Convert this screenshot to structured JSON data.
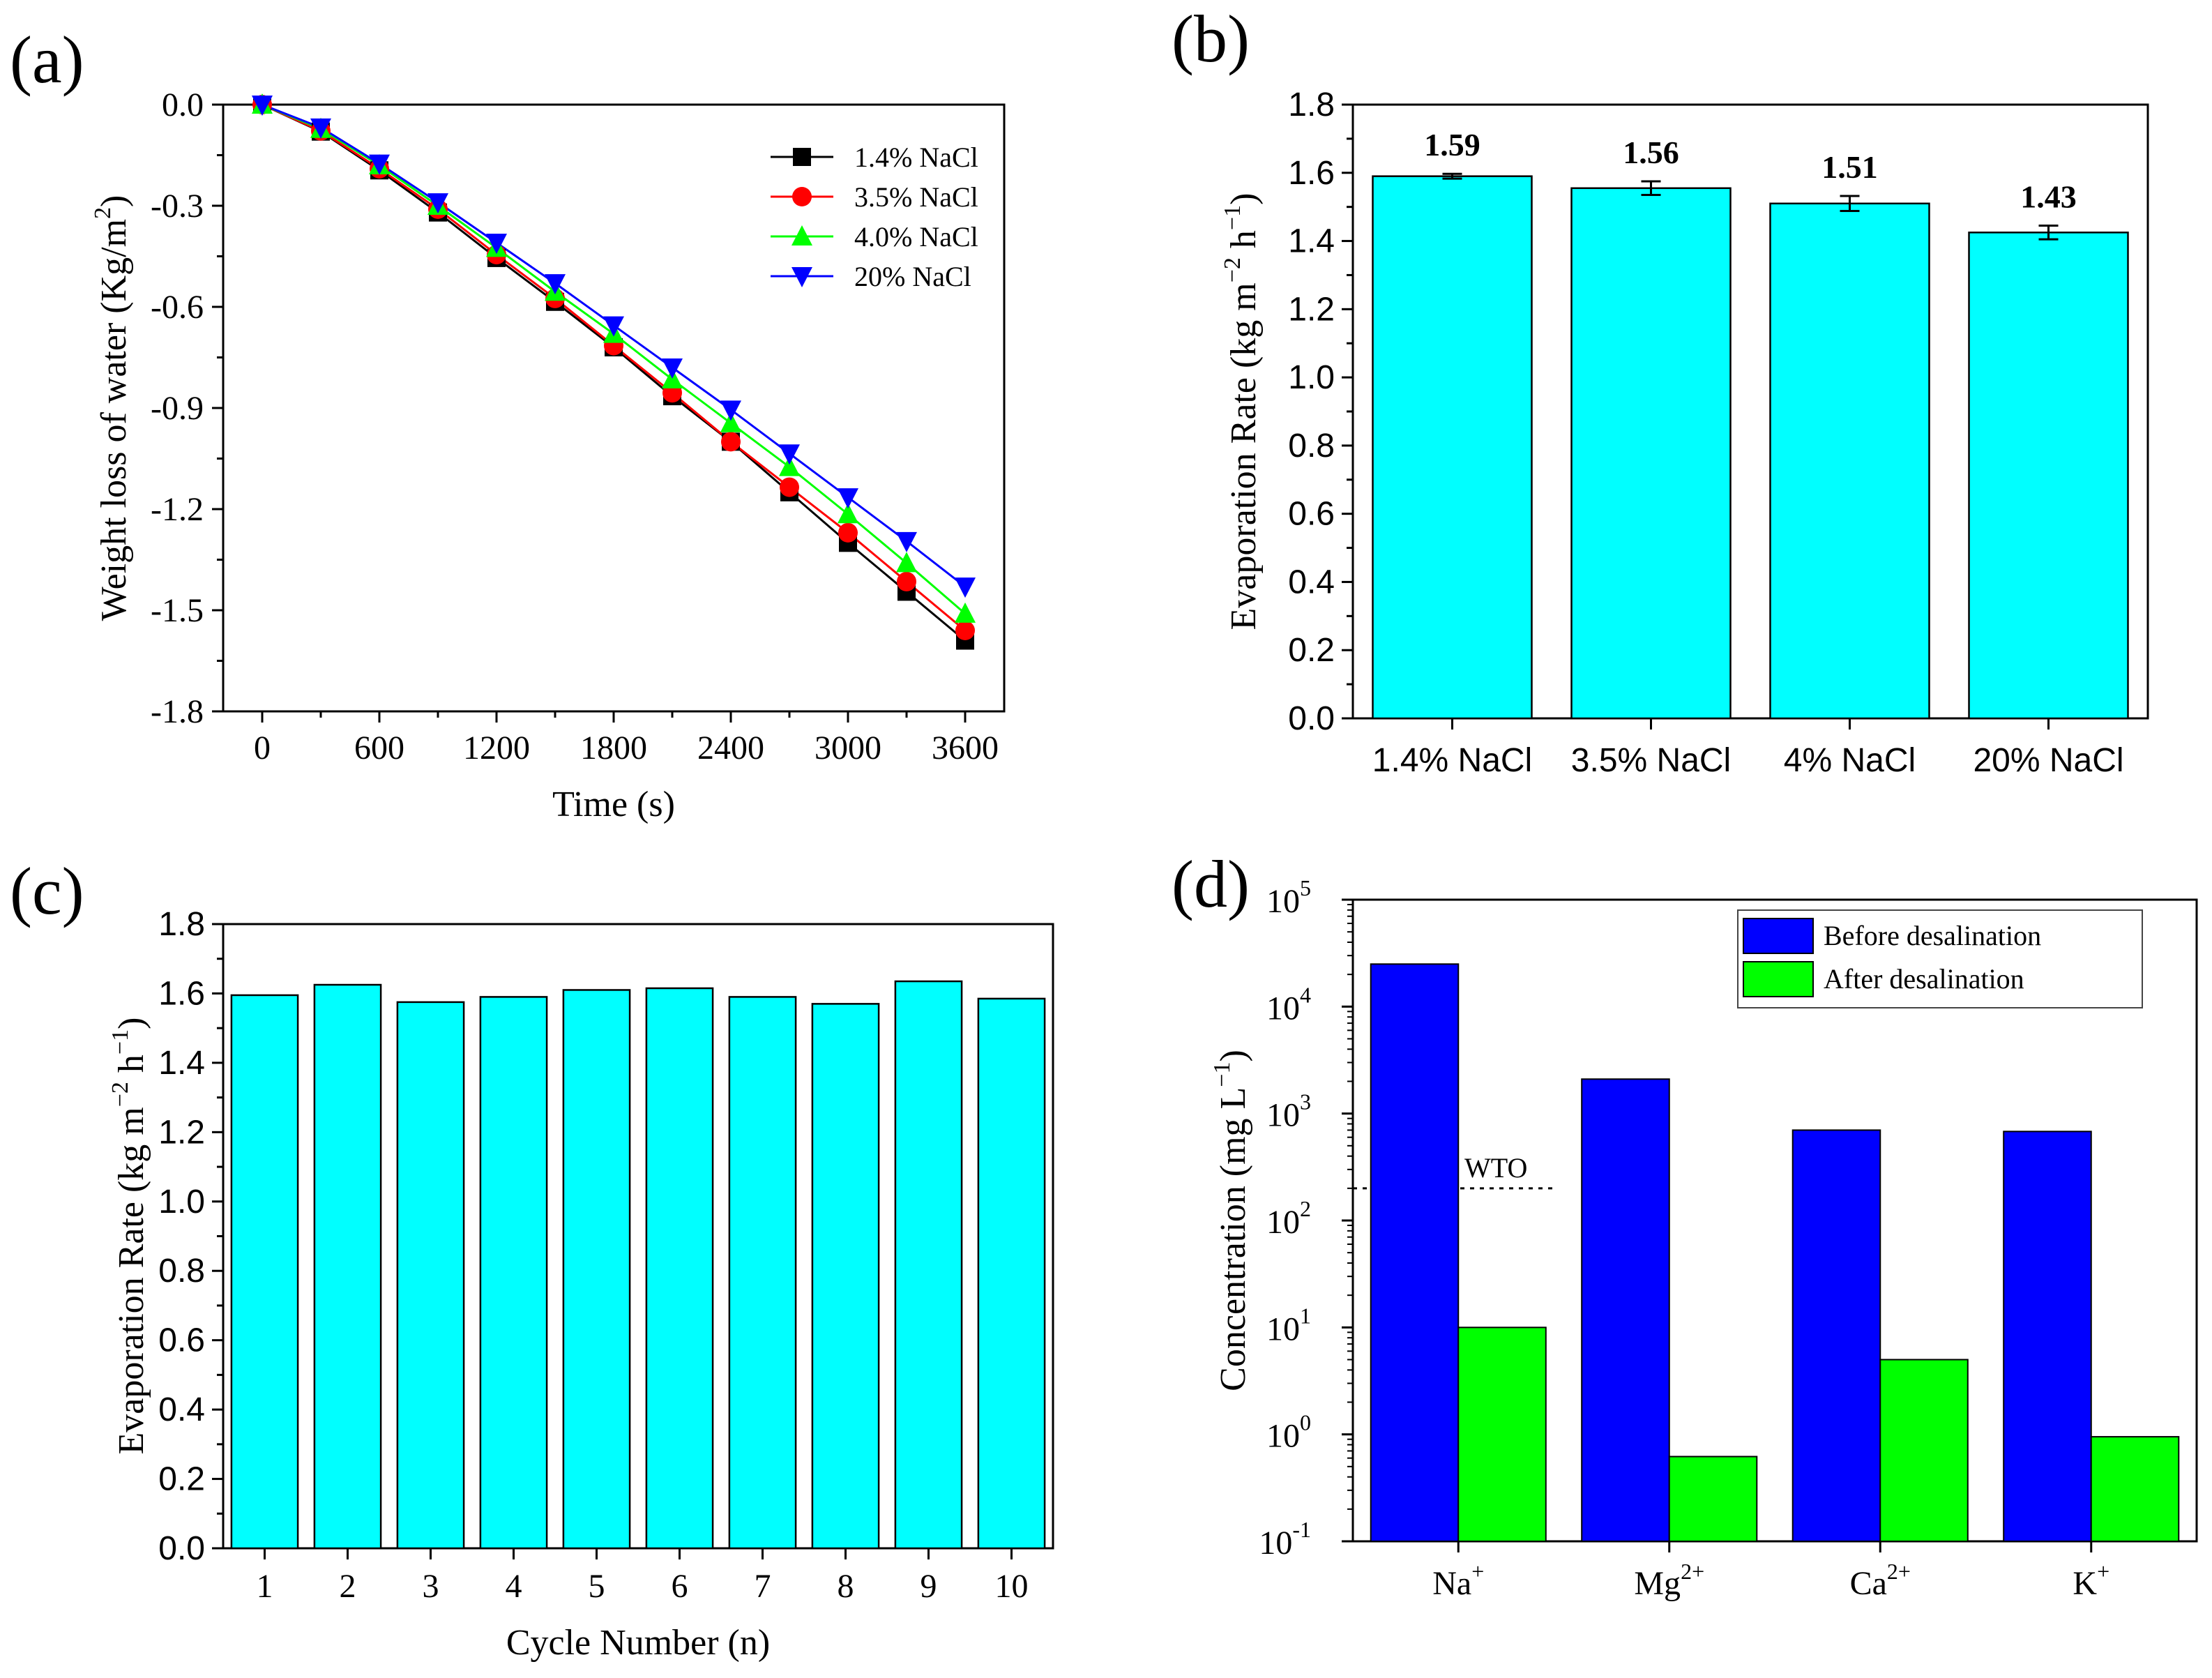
{
  "chart_data": [
    {
      "panel": "(a)",
      "type": "line",
      "xlabel": "Time (s)",
      "ylabel": "Weight loss of water (Kg/m",
      "ylabel_sup": "2",
      "ylabel_close": ")",
      "xlim": [
        -200,
        3800
      ],
      "ylim": [
        -1.8,
        0.0
      ],
      "xticks": [
        0,
        600,
        1200,
        1800,
        2400,
        3000,
        3600
      ],
      "yticks": [
        0.0,
        -0.3,
        -0.6,
        -0.9,
        -1.2,
        -1.5,
        -1.8
      ],
      "ytick_labels": [
        "0.0",
        "-0.3",
        "-0.6",
        "-0.9",
        "-1.2",
        "-1.5",
        "-1.8"
      ],
      "x": [
        0,
        300,
        600,
        900,
        1200,
        1500,
        1800,
        2100,
        2400,
        2700,
        3000,
        3300,
        3600
      ],
      "series": [
        {
          "name": "1.4% NaCl",
          "color": "#000000",
          "marker": "square",
          "values": [
            0,
            -0.08,
            -0.195,
            -0.32,
            -0.455,
            -0.585,
            -0.72,
            -0.865,
            -1.0,
            -1.15,
            -1.3,
            -1.445,
            -1.59
          ]
        },
        {
          "name": "3.5% NaCl",
          "color": "#ff0000",
          "marker": "circle",
          "values": [
            0,
            -0.078,
            -0.19,
            -0.31,
            -0.445,
            -0.575,
            -0.715,
            -0.855,
            -1.0,
            -1.135,
            -1.27,
            -1.415,
            -1.56
          ]
        },
        {
          "name": "4.0% NaCl",
          "color": "#00ff00",
          "marker": "triangle-up",
          "values": [
            0,
            -0.072,
            -0.18,
            -0.3,
            -0.425,
            -0.555,
            -0.68,
            -0.815,
            -0.945,
            -1.075,
            -1.215,
            -1.36,
            -1.51
          ]
        },
        {
          "name": "20%  NaCl",
          "color": "#0000ff",
          "marker": "triangle-down",
          "values": [
            0,
            -0.068,
            -0.175,
            -0.29,
            -0.41,
            -0.53,
            -0.655,
            -0.78,
            -0.905,
            -1.035,
            -1.165,
            -1.295,
            -1.43
          ]
        }
      ],
      "legend_position": "top-right"
    },
    {
      "panel": "(b)",
      "type": "bar",
      "categories": [
        "1.4% NaCl",
        "3.5% NaCl",
        "4% NaCl",
        "20% NaCl"
      ],
      "values": [
        1.59,
        1.555,
        1.51,
        1.425
      ],
      "errors": [
        0.007,
        0.02,
        0.022,
        0.02
      ],
      "data_labels": [
        "1.59",
        "1.56",
        "1.51",
        "1.43"
      ],
      "ylabel": "Evaporation Rate (kg m",
      "ylabel_sup1": "−2",
      "ylabel_mid": " h",
      "ylabel_sup2": "−1",
      "ylabel_close": ")",
      "ylim": [
        0.0,
        1.8
      ],
      "yticks": [
        0.0,
        0.2,
        0.4,
        0.6,
        0.8,
        1.0,
        1.2,
        1.4,
        1.6,
        1.8
      ],
      "ytick_labels": [
        "0.0",
        "0.2",
        "0.4",
        "0.6",
        "0.8",
        "1.0",
        "1.2",
        "1.4",
        "1.6",
        "1.8"
      ],
      "bar_color": "#00ffff"
    },
    {
      "panel": "(c)",
      "type": "bar",
      "categories": [
        "1",
        "2",
        "3",
        "4",
        "5",
        "6",
        "7",
        "8",
        "9",
        "10"
      ],
      "values": [
        1.595,
        1.625,
        1.575,
        1.59,
        1.61,
        1.615,
        1.59,
        1.57,
        1.635,
        1.585
      ],
      "xlabel": "Cycle Number (n)",
      "ylabel": "Evaporation Rate (kg m",
      "ylabel_sup1": "−2",
      "ylabel_mid": " h",
      "ylabel_sup2": "−1",
      "ylabel_close": ")",
      "ylim": [
        0.0,
        1.8
      ],
      "yticks": [
        0.0,
        0.2,
        0.4,
        0.6,
        0.8,
        1.0,
        1.2,
        1.4,
        1.6,
        1.8
      ],
      "ytick_labels": [
        "0.0",
        "0.2",
        "0.4",
        "0.6",
        "0.8",
        "1.0",
        "1.2",
        "1.4",
        "1.6",
        "1.8"
      ],
      "bar_color": "#00ffff"
    },
    {
      "panel": "(d)",
      "type": "bar",
      "scale": "log",
      "categories": [
        {
          "base": "Na",
          "sup": "+"
        },
        {
          "base": "Mg",
          "sup": "2+"
        },
        {
          "base": "Ca",
          "sup": "2+"
        },
        {
          "base": "K",
          "sup": "+"
        }
      ],
      "series": [
        {
          "name": "Before desalination",
          "color": "#0000ff",
          "values": [
            25000,
            2100,
            700,
            680
          ]
        },
        {
          "name": "After desalination",
          "color": "#00ff00",
          "values": [
            10,
            0.62,
            5.0,
            0.95
          ]
        }
      ],
      "ylabel": "Concentration (mg L",
      "ylabel_sup": "−1",
      "ylabel_close": ")",
      "ylim": [
        0.1,
        100000
      ],
      "yticks": [
        {
          "base": "10",
          "exp": "-1"
        },
        {
          "base": "10",
          "exp": "0"
        },
        {
          "base": "10",
          "exp": "1"
        },
        {
          "base": "10",
          "exp": "2"
        },
        {
          "base": "10",
          "exp": "3"
        },
        {
          "base": "10",
          "exp": "4"
        },
        {
          "base": "10",
          "exp": "5"
        }
      ],
      "reference_line": {
        "label": "WTO",
        "value": 200
      },
      "legend_position": "top-right"
    }
  ]
}
